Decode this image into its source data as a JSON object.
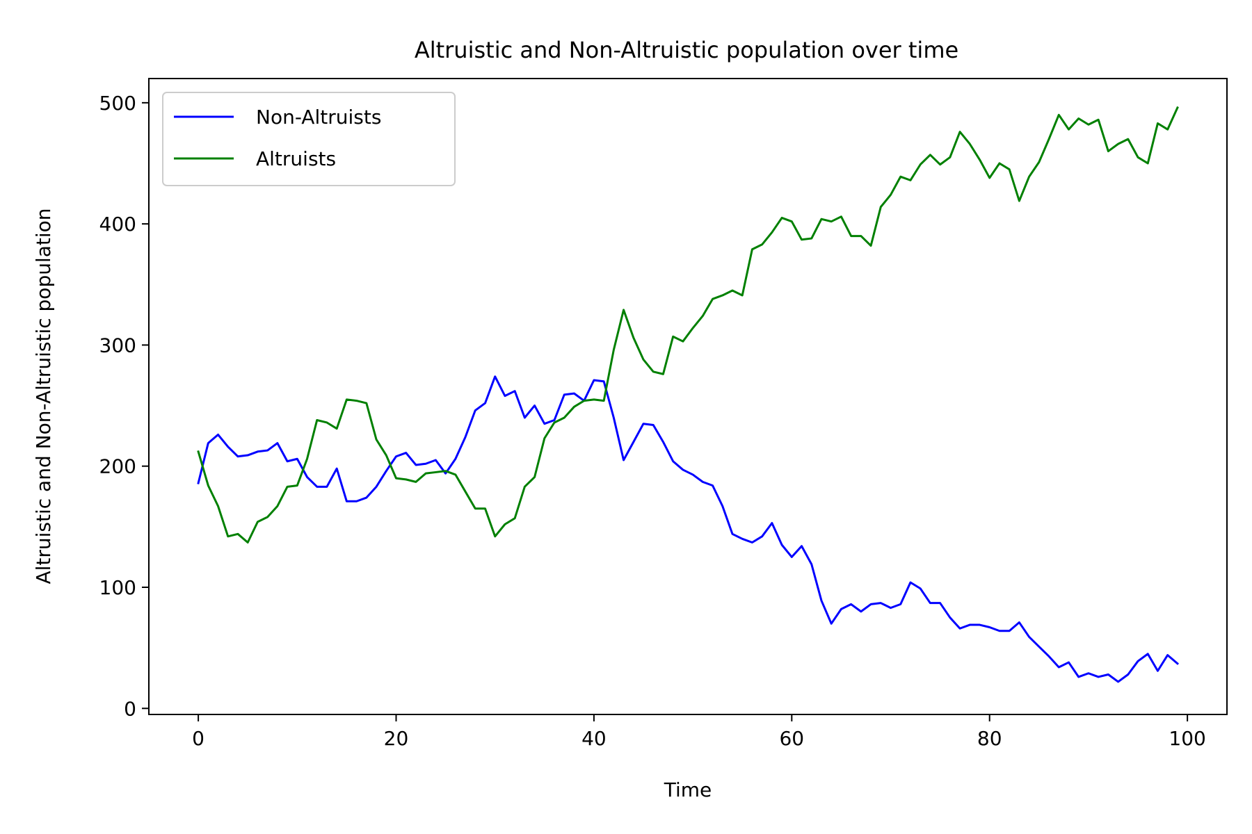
{
  "chart_data": {
    "type": "line",
    "title": "Altruistic and Non-Altruistic population over time",
    "xlabel": "Time",
    "ylabel": "Altruistic and Non-Altruistic population",
    "xlim": [
      -5,
      104
    ],
    "ylim": [
      -5,
      520
    ],
    "xticks": [
      0,
      20,
      40,
      60,
      80,
      100
    ],
    "yticks": [
      0,
      100,
      200,
      300,
      400,
      500
    ],
    "grid": false,
    "legend_position": "upper-left",
    "x": [
      0,
      1,
      2,
      3,
      4,
      5,
      6,
      7,
      8,
      9,
      10,
      11,
      12,
      13,
      14,
      15,
      16,
      17,
      18,
      19,
      20,
      21,
      22,
      23,
      24,
      25,
      26,
      27,
      28,
      29,
      30,
      31,
      32,
      33,
      34,
      35,
      36,
      37,
      38,
      39,
      40,
      41,
      42,
      43,
      44,
      45,
      46,
      47,
      48,
      49,
      50,
      51,
      52,
      53,
      54,
      55,
      56,
      57,
      58,
      59,
      60,
      61,
      62,
      63,
      64,
      65,
      66,
      67,
      68,
      69,
      70,
      71,
      72,
      73,
      74,
      75,
      76,
      77,
      78,
      79,
      80,
      81,
      82,
      83,
      84,
      85,
      86,
      87,
      88,
      89,
      90,
      91,
      92,
      93,
      94,
      95,
      96,
      97,
      98,
      99
    ],
    "series": [
      {
        "name": "Non-Altruists",
        "color": "#0000ff",
        "values": [
          186,
          219,
          226,
          216,
          208,
          209,
          212,
          213,
          219,
          204,
          206,
          191,
          183,
          183,
          198,
          171,
          171,
          174,
          183,
          196,
          208,
          211,
          201,
          202,
          205,
          194,
          206,
          224,
          246,
          252,
          274,
          258,
          262,
          240,
          250,
          235,
          238,
          259,
          260,
          254,
          271,
          270,
          240,
          205,
          220,
          235,
          234,
          220,
          204,
          197,
          193,
          187,
          184,
          167,
          144,
          140,
          137,
          142,
          153,
          135,
          125,
          134,
          119,
          89,
          70,
          82,
          86,
          80,
          86,
          87,
          83,
          86,
          104,
          99,
          87,
          87,
          75,
          66,
          69,
          69,
          67,
          64,
          64,
          71,
          59,
          51,
          43,
          34,
          38,
          26,
          29,
          26,
          28,
          22,
          28,
          39,
          45,
          31,
          44,
          37
        ]
      },
      {
        "name": "Altruists",
        "color": "#008000",
        "values": [
          212,
          184,
          167,
          142,
          144,
          137,
          154,
          158,
          167,
          183,
          184,
          206,
          238,
          236,
          231,
          255,
          254,
          252,
          222,
          209,
          190,
          189,
          187,
          194,
          195,
          196,
          193,
          179,
          165,
          165,
          142,
          152,
          157,
          183,
          191,
          223,
          236,
          240,
          249,
          254,
          255,
          254,
          296,
          329,
          306,
          288,
          278,
          276,
          307,
          303,
          314,
          324,
          338,
          341,
          345,
          341,
          379,
          383,
          393,
          405,
          402,
          387,
          388,
          404,
          402,
          406,
          390,
          390,
          382,
          414,
          424,
          439,
          436,
          449,
          457,
          449,
          455,
          476,
          466,
          453,
          438,
          450,
          445,
          419,
          439,
          451,
          470,
          490,
          478,
          487,
          482,
          486,
          460,
          466,
          470,
          455,
          450,
          483,
          478,
          496
        ]
      }
    ]
  }
}
